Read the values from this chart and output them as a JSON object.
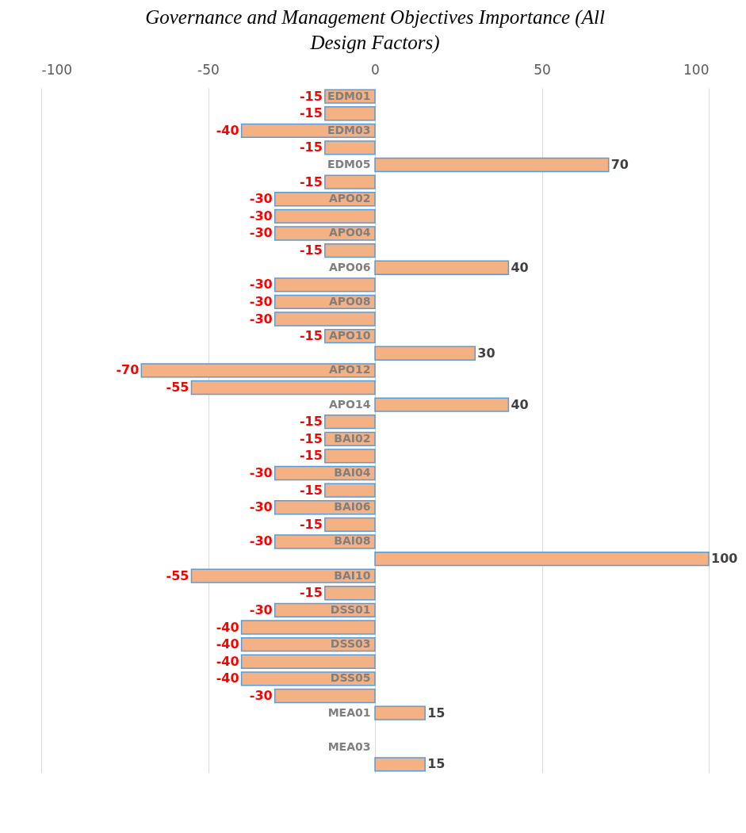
{
  "chart_data": {
    "type": "bar",
    "orientation": "horizontal",
    "title": "Governance and Management Objectives Importance (All Design Factors)",
    "categories": [
      "EDM01",
      null,
      "EDM03",
      null,
      "EDM05",
      null,
      "APO02",
      null,
      "APO04",
      null,
      "APO06",
      null,
      "APO08",
      null,
      "APO10",
      null,
      "APO12",
      null,
      "APO14",
      null,
      "BAI02",
      null,
      "BAI04",
      null,
      "BAI06",
      null,
      "BAI08",
      null,
      "BAI10",
      null,
      "DSS01",
      null,
      "DSS03",
      null,
      "DSS05",
      null,
      "MEA01",
      null,
      "MEA03",
      null
    ],
    "values": [
      -15,
      -15,
      -40,
      -15,
      70,
      -15,
      -30,
      -30,
      -30,
      -15,
      40,
      -30,
      -30,
      -30,
      -15,
      30,
      -70,
      -55,
      40,
      -15,
      -15,
      -15,
      -30,
      -15,
      -30,
      -15,
      -30,
      100,
      -55,
      -15,
      -30,
      -40,
      -40,
      -40,
      -40,
      -30,
      15,
      null,
      null,
      15
    ],
    "color": "#f4b183",
    "xlim": [
      -100,
      100
    ],
    "xticks": [
      -100,
      -50,
      0,
      50,
      100
    ],
    "grid": "x",
    "data_labels": true
  }
}
